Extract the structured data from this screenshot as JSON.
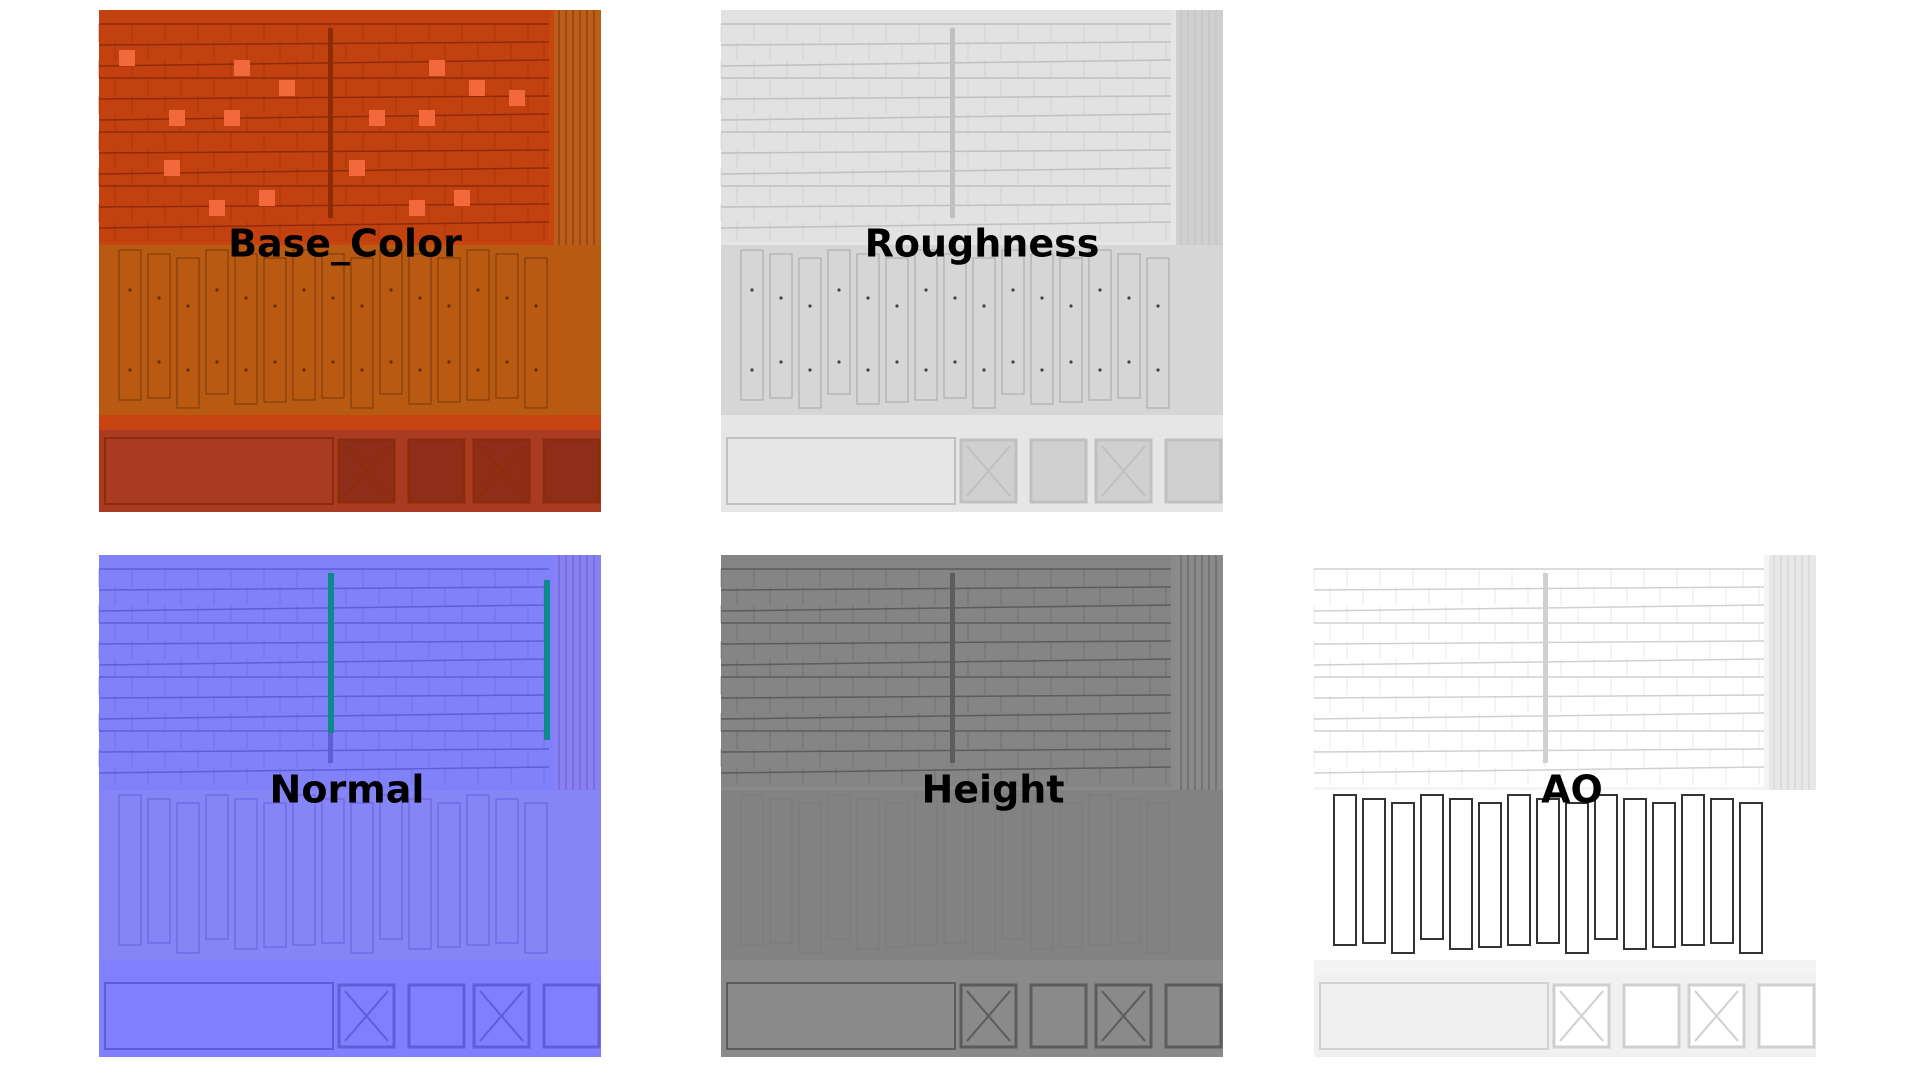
{
  "panels": [
    {
      "label": "Base_Color"
    },
    {
      "label": "Roughness"
    },
    {
      "label": "Normal"
    },
    {
      "label": "Height"
    },
    {
      "label": "AO"
    }
  ]
}
